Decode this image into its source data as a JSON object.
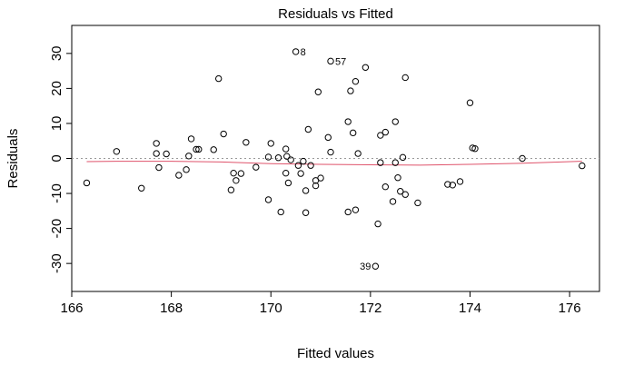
{
  "chart_data": {
    "type": "scatter",
    "title": "Residuals vs Fitted",
    "xlabel": "Fitted values",
    "ylabel": "Residuals",
    "xlim": [
      166,
      176.6
    ],
    "ylim": [
      -38,
      38
    ],
    "xticks": [
      166,
      168,
      170,
      172,
      174,
      176
    ],
    "yticks": [
      -30,
      -20,
      -10,
      0,
      10,
      20,
      30
    ],
    "reference_line": 0,
    "grid": false,
    "colors": {
      "points": "#000000",
      "smooth": "#df536b",
      "reference": "#999999",
      "frame": "#000000"
    },
    "points": [
      {
        "x": 166.3,
        "y": -7
      },
      {
        "x": 166.9,
        "y": 2
      },
      {
        "x": 167.4,
        "y": -8.5
      },
      {
        "x": 167.7,
        "y": 4.3
      },
      {
        "x": 167.7,
        "y": 1.4
      },
      {
        "x": 167.75,
        "y": -2.6
      },
      {
        "x": 167.9,
        "y": 1.3
      },
      {
        "x": 168.15,
        "y": -4.8
      },
      {
        "x": 168.3,
        "y": -3.2
      },
      {
        "x": 168.35,
        "y": 0.7
      },
      {
        "x": 168.4,
        "y": 5.6
      },
      {
        "x": 168.5,
        "y": 2.6
      },
      {
        "x": 168.55,
        "y": 2.6
      },
      {
        "x": 168.85,
        "y": 2.5
      },
      {
        "x": 168.95,
        "y": 22.8
      },
      {
        "x": 169.05,
        "y": 7
      },
      {
        "x": 169.2,
        "y": -9
      },
      {
        "x": 169.25,
        "y": -4.2
      },
      {
        "x": 169.3,
        "y": -6.3
      },
      {
        "x": 169.4,
        "y": -4.3
      },
      {
        "x": 169.5,
        "y": 4.6
      },
      {
        "x": 169.7,
        "y": -2.5
      },
      {
        "x": 169.95,
        "y": 0.4
      },
      {
        "x": 169.95,
        "y": -11.8
      },
      {
        "x": 170.0,
        "y": 4.3
      },
      {
        "x": 170.15,
        "y": 0.2
      },
      {
        "x": 170.2,
        "y": -15.3
      },
      {
        "x": 170.3,
        "y": 2.7
      },
      {
        "x": 170.3,
        "y": -4.2
      },
      {
        "x": 170.32,
        "y": 0.6
      },
      {
        "x": 170.35,
        "y": -7
      },
      {
        "x": 170.4,
        "y": -0.4
      },
      {
        "x": 170.5,
        "y": 30.5
      },
      {
        "x": 170.55,
        "y": -2
      },
      {
        "x": 170.6,
        "y": -4.3
      },
      {
        "x": 170.65,
        "y": -0.8
      },
      {
        "x": 170.7,
        "y": -15.5
      },
      {
        "x": 170.7,
        "y": -9.2
      },
      {
        "x": 170.75,
        "y": 8.3
      },
      {
        "x": 170.8,
        "y": -2
      },
      {
        "x": 170.9,
        "y": -6.3
      },
      {
        "x": 170.9,
        "y": -7.8
      },
      {
        "x": 170.95,
        "y": 19
      },
      {
        "x": 171.0,
        "y": -5.6
      },
      {
        "x": 171.15,
        "y": 6
      },
      {
        "x": 171.2,
        "y": 1.8
      },
      {
        "x": 171.2,
        "y": 27.8
      },
      {
        "x": 171.55,
        "y": 10.5
      },
      {
        "x": 171.55,
        "y": -15.3
      },
      {
        "x": 171.6,
        "y": 19.3
      },
      {
        "x": 171.65,
        "y": 7.3
      },
      {
        "x": 171.7,
        "y": 22
      },
      {
        "x": 171.7,
        "y": -14.7
      },
      {
        "x": 171.75,
        "y": 1.4
      },
      {
        "x": 171.9,
        "y": 26
      },
      {
        "x": 172.1,
        "y": -30.8
      },
      {
        "x": 172.15,
        "y": -18.7
      },
      {
        "x": 172.2,
        "y": 6.6
      },
      {
        "x": 172.2,
        "y": -1.2
      },
      {
        "x": 172.3,
        "y": -8.1
      },
      {
        "x": 172.3,
        "y": 7.5
      },
      {
        "x": 172.45,
        "y": -12.3
      },
      {
        "x": 172.5,
        "y": -1.2
      },
      {
        "x": 172.5,
        "y": 10.5
      },
      {
        "x": 172.55,
        "y": -5.5
      },
      {
        "x": 172.6,
        "y": -9.4
      },
      {
        "x": 172.65,
        "y": 0.3
      },
      {
        "x": 172.7,
        "y": -10.3
      },
      {
        "x": 172.7,
        "y": 23.1
      },
      {
        "x": 172.95,
        "y": -12.7
      },
      {
        "x": 173.55,
        "y": -7.4
      },
      {
        "x": 173.65,
        "y": -7.6
      },
      {
        "x": 173.8,
        "y": -6.6
      },
      {
        "x": 174.0,
        "y": 15.9
      },
      {
        "x": 174.05,
        "y": 3
      },
      {
        "x": 174.1,
        "y": 2.8
      },
      {
        "x": 175.05,
        "y": 0
      },
      {
        "x": 176.25,
        "y": -2.1
      }
    ],
    "labeled_points": [
      {
        "label": "8",
        "x": 170.5,
        "y": 30.5,
        "side": "right"
      },
      {
        "label": "57",
        "x": 171.2,
        "y": 27.8,
        "side": "right"
      },
      {
        "label": "39",
        "x": 172.1,
        "y": -30.8,
        "side": "left"
      }
    ],
    "smooth_line": [
      {
        "x": 166.3,
        "y": -0.9
      },
      {
        "x": 167.0,
        "y": -0.8
      },
      {
        "x": 168.0,
        "y": -0.8
      },
      {
        "x": 169.0,
        "y": -1.0
      },
      {
        "x": 170.0,
        "y": -1.5
      },
      {
        "x": 171.0,
        "y": -1.7
      },
      {
        "x": 172.0,
        "y": -1.8
      },
      {
        "x": 173.0,
        "y": -1.9
      },
      {
        "x": 174.0,
        "y": -1.7
      },
      {
        "x": 175.0,
        "y": -1.4
      },
      {
        "x": 176.25,
        "y": -0.8
      }
    ]
  }
}
